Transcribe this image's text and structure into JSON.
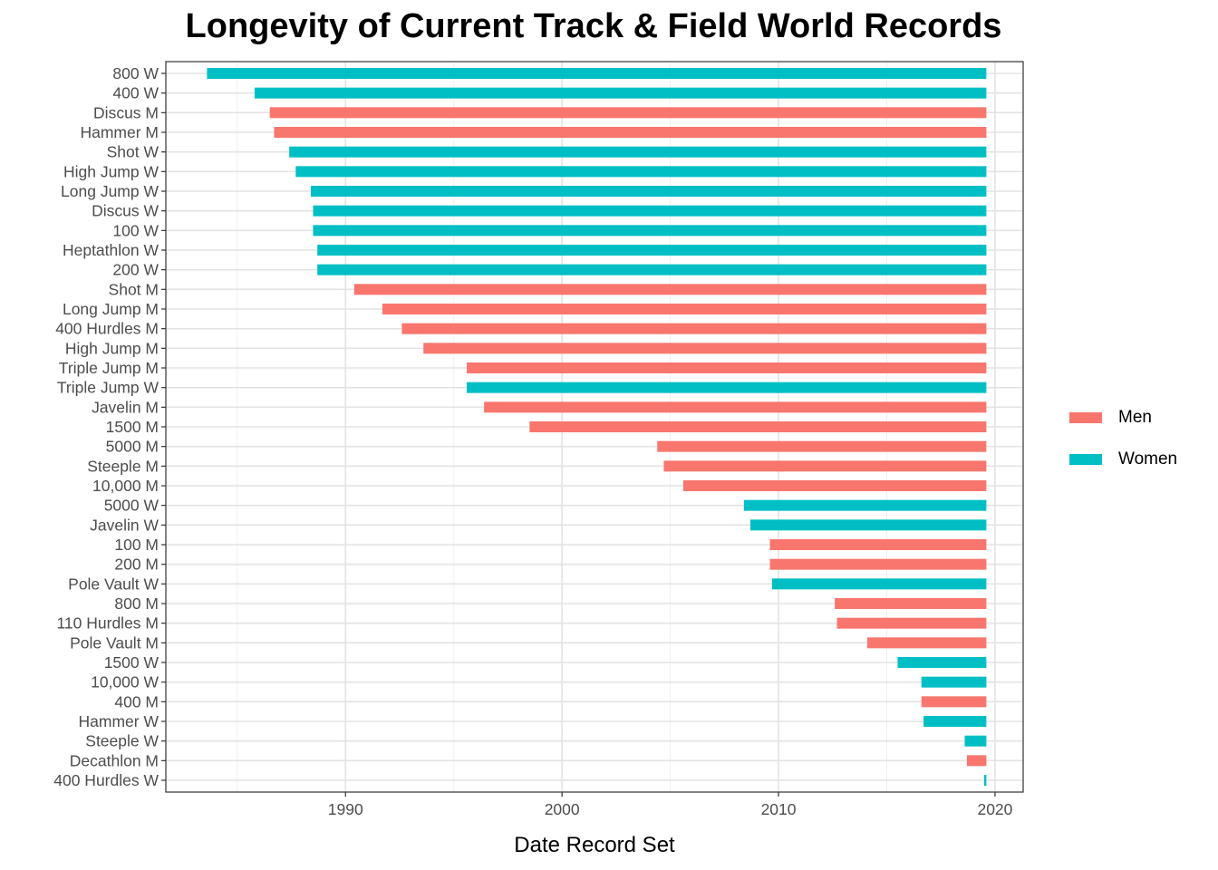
{
  "chart_data": {
    "type": "bar",
    "orientation": "horizontal",
    "title": "Longevity of Current Track & Field World Records",
    "xlabel": "Date Record Set",
    "ylabel": "",
    "xlim": [
      1981.7,
      2021.3
    ],
    "x_end": 2019.6,
    "xticks": [
      1990,
      2000,
      2010,
      2020
    ],
    "grid": true,
    "legend": {
      "position": "right",
      "entries": [
        {
          "name": "Men",
          "color": "#F8766D"
        },
        {
          "name": "Women",
          "color": "#00BFC4"
        }
      ]
    },
    "colors": {
      "Men": "#F8766D",
      "Women": "#00BFC4"
    },
    "records": [
      {
        "event": "800 W",
        "sex": "Women",
        "start": 1983.6
      },
      {
        "event": "400 W",
        "sex": "Women",
        "start": 1985.8
      },
      {
        "event": "Discus M",
        "sex": "Men",
        "start": 1986.5
      },
      {
        "event": "Hammer M",
        "sex": "Men",
        "start": 1986.7
      },
      {
        "event": "Shot W",
        "sex": "Women",
        "start": 1987.4
      },
      {
        "event": "High Jump W",
        "sex": "Women",
        "start": 1987.7
      },
      {
        "event": "Long Jump W",
        "sex": "Women",
        "start": 1988.4
      },
      {
        "event": "Discus W",
        "sex": "Women",
        "start": 1988.5
      },
      {
        "event": "100 W",
        "sex": "Women",
        "start": 1988.5
      },
      {
        "event": "Heptathlon W",
        "sex": "Women",
        "start": 1988.7
      },
      {
        "event": "200 W",
        "sex": "Women",
        "start": 1988.7
      },
      {
        "event": "Shot M",
        "sex": "Men",
        "start": 1990.4
      },
      {
        "event": "Long Jump M",
        "sex": "Men",
        "start": 1991.7
      },
      {
        "event": "400 Hurdles M",
        "sex": "Men",
        "start": 1992.6
      },
      {
        "event": "High Jump M",
        "sex": "Men",
        "start": 1993.6
      },
      {
        "event": "Triple Jump M",
        "sex": "Men",
        "start": 1995.6
      },
      {
        "event": "Triple Jump W",
        "sex": "Women",
        "start": 1995.6
      },
      {
        "event": "Javelin M",
        "sex": "Men",
        "start": 1996.4
      },
      {
        "event": "1500 M",
        "sex": "Men",
        "start": 1998.5
      },
      {
        "event": "5000 M",
        "sex": "Men",
        "start": 2004.4
      },
      {
        "event": "Steeple M",
        "sex": "Men",
        "start": 2004.7
      },
      {
        "event": "10,000 M",
        "sex": "Men",
        "start": 2005.6
      },
      {
        "event": "5000 W",
        "sex": "Women",
        "start": 2008.4
      },
      {
        "event": "Javelin W",
        "sex": "Women",
        "start": 2008.7
      },
      {
        "event": "100 M",
        "sex": "Men",
        "start": 2009.6
      },
      {
        "event": "200 M",
        "sex": "Men",
        "start": 2009.6
      },
      {
        "event": "Pole Vault W",
        "sex": "Women",
        "start": 2009.7
      },
      {
        "event": "800 M",
        "sex": "Men",
        "start": 2012.6
      },
      {
        "event": "110 Hurdles M",
        "sex": "Men",
        "start": 2012.7
      },
      {
        "event": "Pole Vault M",
        "sex": "Men",
        "start": 2014.1
      },
      {
        "event": "1500 W",
        "sex": "Women",
        "start": 2015.5
      },
      {
        "event": "10,000 W",
        "sex": "Women",
        "start": 2016.6
      },
      {
        "event": "400 M",
        "sex": "Men",
        "start": 2016.6
      },
      {
        "event": "Hammer W",
        "sex": "Women",
        "start": 2016.7
      },
      {
        "event": "Steeple W",
        "sex": "Women",
        "start": 2018.6
      },
      {
        "event": "Decathlon M",
        "sex": "Men",
        "start": 2018.7
      },
      {
        "event": "400 Hurdles W",
        "sex": "Women",
        "start": 2019.5
      }
    ]
  }
}
